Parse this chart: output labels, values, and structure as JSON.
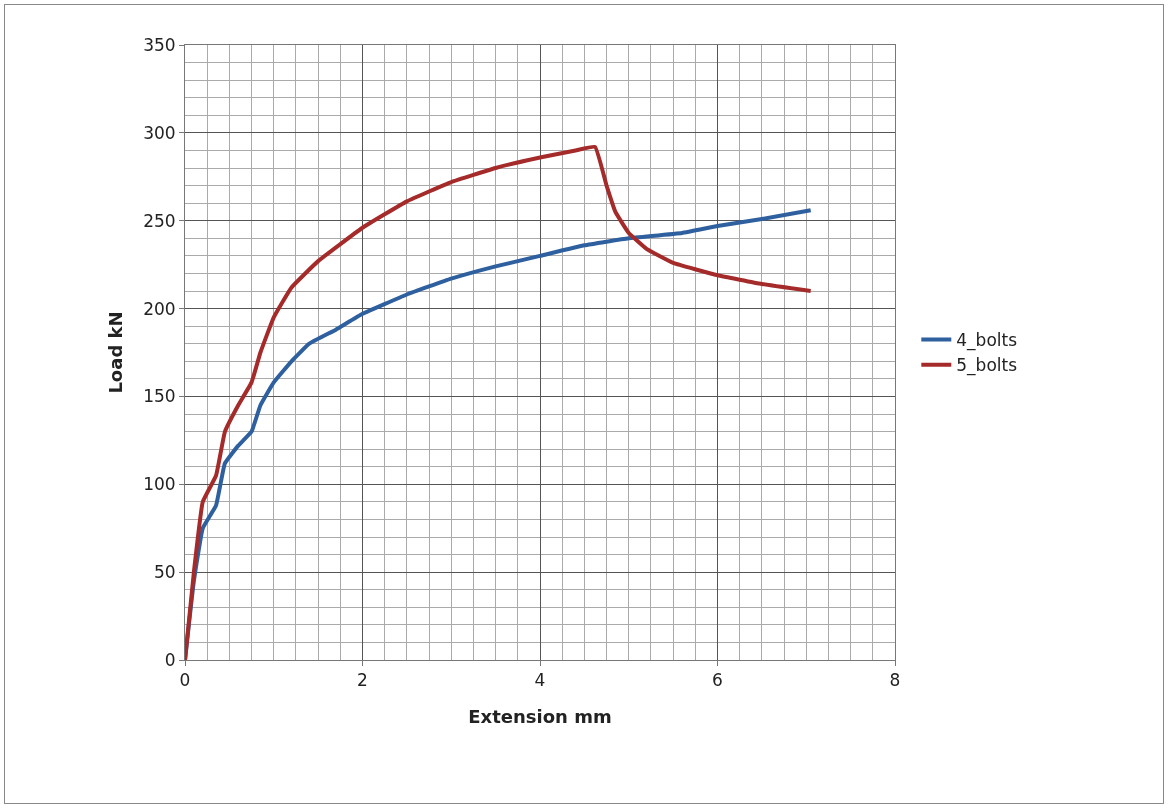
{
  "chart_data": {
    "type": "line",
    "xlabel": "Extension mm",
    "ylabel": "Load kN",
    "series": [
      {
        "name": "4_bolts",
        "color": "#2e5f9e",
        "x": [
          0,
          0.1,
          0.2,
          0.35,
          0.45,
          0.6,
          0.75,
          0.85,
          1.0,
          1.2,
          1.4,
          1.7,
          2.0,
          2.5,
          3.0,
          3.5,
          4.0,
          4.5,
          5.0,
          5.6,
          6.0,
          6.5,
          7.05
        ],
        "values": [
          0,
          45,
          75,
          88,
          112,
          122,
          130,
          145,
          158,
          170,
          180,
          188,
          197,
          208,
          217,
          224,
          230,
          236,
          240,
          243,
          247,
          251,
          256
        ]
      },
      {
        "name": "5_bolts",
        "color": "#a52a2a",
        "x": [
          0,
          0.1,
          0.2,
          0.35,
          0.45,
          0.6,
          0.75,
          0.85,
          1.0,
          1.2,
          1.5,
          2.0,
          2.5,
          3.0,
          3.5,
          4.0,
          4.4,
          4.62,
          4.75,
          4.85,
          5.0,
          5.2,
          5.5,
          6.0,
          6.5,
          7.05
        ],
        "values": [
          0,
          50,
          90,
          105,
          130,
          145,
          158,
          175,
          195,
          212,
          227,
          246,
          261,
          272,
          280,
          286,
          290,
          292,
          270,
          255,
          243,
          234,
          226,
          219,
          214,
          210
        ]
      }
    ],
    "xlim": [
      0,
      8
    ],
    "xticks": [
      0,
      2,
      4,
      6,
      8
    ],
    "ylim": [
      0,
      350
    ],
    "yticks": [
      0,
      50,
      100,
      150,
      200,
      250,
      300,
      350
    ],
    "grid": true,
    "legend": "right",
    "marker": "none",
    "line_style": "solid"
  }
}
